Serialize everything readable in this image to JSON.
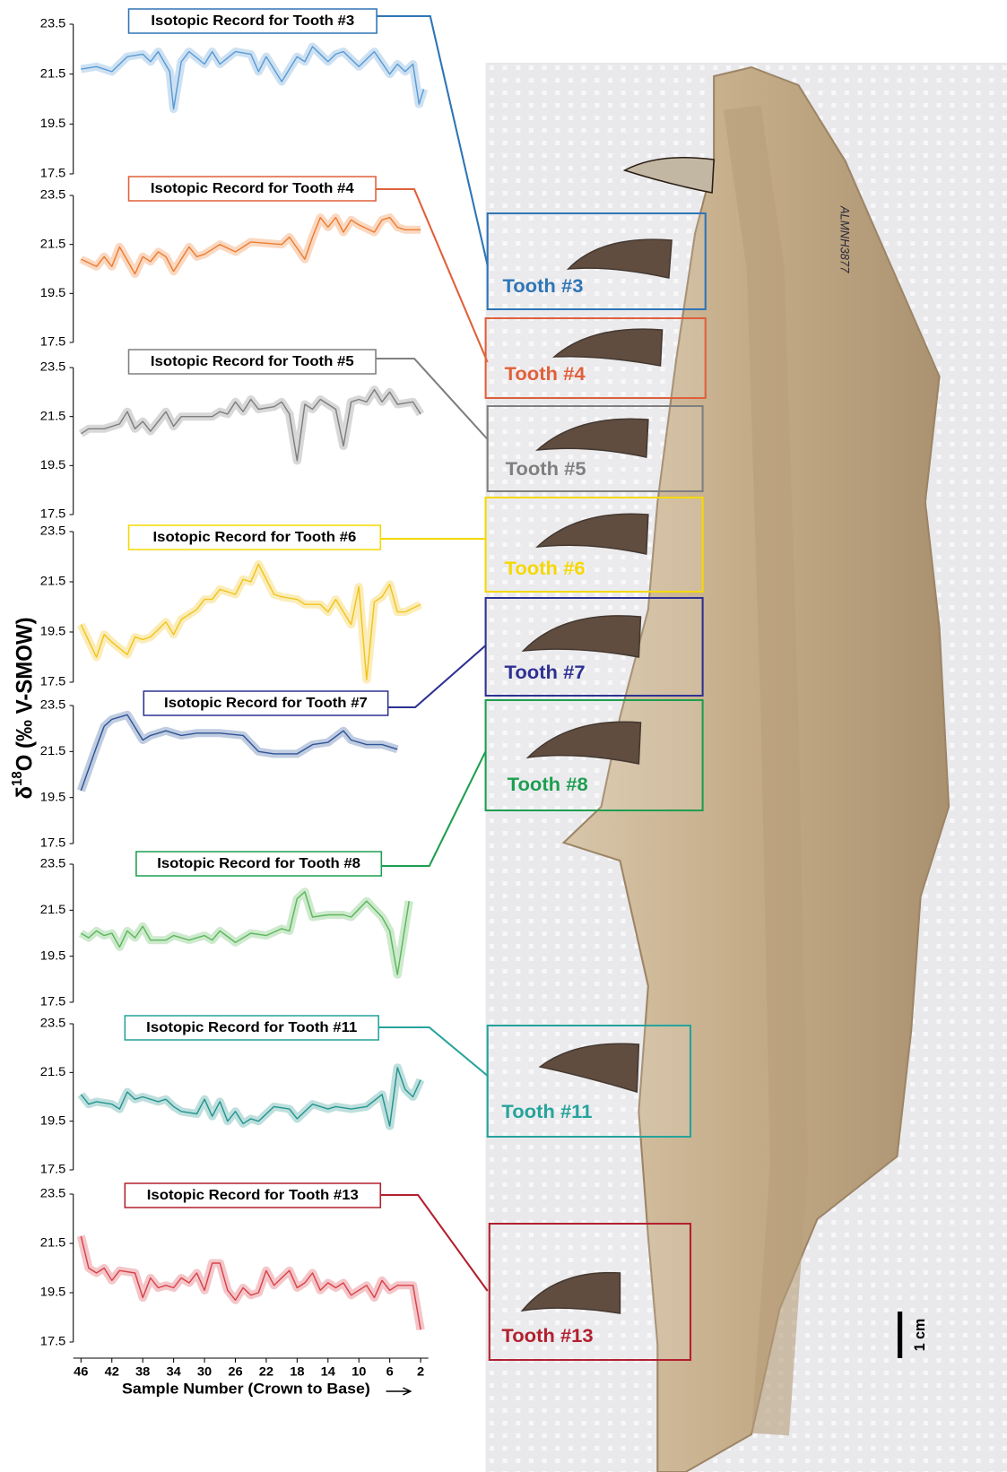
{
  "ylabel": {
    "symbol": "δ",
    "superscript": "18",
    "rest": "O (‰ V-SMOW)"
  },
  "photo": {
    "specimen_label": "ALMNH3877",
    "scale_label": "1 cm",
    "tooth_labels": [
      "Tooth #3",
      "Tooth #4",
      "Tooth #5",
      "Tooth #6",
      "Tooth #7",
      "Tooth #8",
      "Tooth #11",
      "Tooth #13"
    ]
  },
  "chart_data": [
    {
      "type": "line",
      "title": "Isotopic Record for Tooth #3",
      "color": "#5b9bd5",
      "box_color": "#2e75b6",
      "x": [
        46,
        44,
        42,
        40,
        38,
        37,
        36,
        34.5,
        34,
        33,
        32,
        30,
        29,
        28,
        26,
        24,
        23,
        22,
        20,
        18,
        17,
        16,
        14,
        13,
        12,
        10,
        8,
        6,
        5,
        4,
        3,
        2.2,
        1.6
      ],
      "values": [
        21.7,
        21.8,
        21.6,
        22.2,
        22.3,
        22.0,
        22.4,
        21.6,
        20.1,
        22.0,
        22.4,
        21.9,
        22.4,
        21.9,
        22.4,
        22.3,
        21.6,
        22.2,
        21.2,
        22.2,
        22.0,
        22.6,
        22.0,
        22.3,
        22.4,
        21.8,
        22.4,
        21.5,
        21.9,
        21.6,
        21.9,
        20.3,
        20.9
      ],
      "xlim": [
        47,
        1
      ],
      "ylim": [
        17.5,
        23.5
      ],
      "yticks": [
        17.5,
        19.5,
        21.5,
        23.5
      ]
    },
    {
      "type": "line",
      "title": "Isotopic Record for Tooth #4",
      "color": "#ed7d31",
      "box_color": "#e0603a",
      "x": [
        46,
        44,
        43,
        42,
        41,
        39,
        38,
        37,
        36,
        35,
        34,
        32,
        31,
        30,
        28,
        26,
        24,
        20,
        19,
        17,
        16,
        15,
        14,
        13,
        12,
        11,
        10,
        8,
        7,
        6,
        5,
        4,
        2
      ],
      "values": [
        20.9,
        20.6,
        21.0,
        20.6,
        21.4,
        20.3,
        21.0,
        20.8,
        21.2,
        21.0,
        20.4,
        21.4,
        21.0,
        21.1,
        21.5,
        21.2,
        21.6,
        21.5,
        21.8,
        20.9,
        21.8,
        22.6,
        22.2,
        22.6,
        22.0,
        22.5,
        22.3,
        22.0,
        22.5,
        22.6,
        22.2,
        22.1,
        22.1
      ],
      "xlim": [
        47,
        1
      ],
      "ylim": [
        17.5,
        23.5
      ],
      "yticks": [
        17.5,
        19.5,
        21.5,
        23.5
      ]
    },
    {
      "type": "line",
      "title": "Isotopic Record for Tooth #5",
      "color": "#7f7f7f",
      "box_color": "#7f7f7f",
      "x": [
        46,
        45,
        43,
        41,
        40,
        39,
        38,
        37,
        35,
        34,
        33,
        31,
        29,
        28,
        27,
        26,
        25,
        24,
        23,
        21,
        20,
        19,
        18,
        17,
        16,
        15,
        13,
        12,
        11,
        10,
        9,
        8,
        7,
        6,
        5,
        3,
        2
      ],
      "values": [
        20.8,
        21.0,
        21.0,
        21.2,
        21.7,
        21.0,
        21.3,
        20.9,
        21.7,
        21.1,
        21.5,
        21.5,
        21.5,
        21.7,
        21.6,
        22.1,
        21.7,
        22.2,
        21.8,
        21.9,
        22.1,
        21.6,
        19.7,
        22.0,
        21.8,
        22.2,
        21.8,
        20.3,
        22.1,
        22.2,
        22.1,
        22.6,
        22.1,
        22.5,
        22.0,
        22.1,
        21.6
      ],
      "xlim": [
        47,
        1
      ],
      "ylim": [
        17.5,
        23.5
      ],
      "yticks": [
        17.5,
        19.5,
        21.5,
        23.5
      ]
    },
    {
      "type": "line",
      "title": "Isotopic Record for Tooth #6",
      "color": "#f2c41c",
      "box_color": "#f5d800",
      "x": [
        46,
        44,
        43,
        42,
        40,
        39,
        38,
        37,
        35,
        34,
        33,
        31,
        30,
        29,
        28,
        27,
        26,
        25,
        24,
        23,
        21,
        20,
        18,
        17,
        15,
        14,
        13,
        11,
        10,
        9,
        8,
        7,
        6,
        5,
        4,
        2
      ],
      "values": [
        19.8,
        18.5,
        19.4,
        19.1,
        18.6,
        19.3,
        19.2,
        19.3,
        19.9,
        19.4,
        20.0,
        20.4,
        20.8,
        20.8,
        21.2,
        21.1,
        21.0,
        21.6,
        21.5,
        22.2,
        21.0,
        20.9,
        20.8,
        20.6,
        20.6,
        20.3,
        20.8,
        19.8,
        21.3,
        17.6,
        20.7,
        20.9,
        21.4,
        20.3,
        20.3,
        20.6
      ],
      "xlim": [
        47,
        1
      ],
      "ylim": [
        17.5,
        23.5
      ],
      "yticks": [
        17.5,
        19.5,
        21.5,
        23.5
      ]
    },
    {
      "type": "line",
      "title": "Isotopic Record for Tooth #7",
      "color": "#2f5597",
      "box_color": "#2e3192",
      "x": [
        46,
        44,
        43,
        42,
        40,
        38,
        37,
        35,
        33,
        31,
        28,
        25,
        23,
        21,
        18,
        16,
        14,
        12,
        11,
        9,
        7,
        5
      ],
      "values": [
        19.8,
        21.7,
        22.6,
        22.9,
        23.1,
        22.0,
        22.2,
        22.4,
        22.2,
        22.3,
        22.3,
        22.2,
        21.5,
        21.4,
        21.4,
        21.8,
        21.9,
        22.4,
        22.0,
        21.8,
        21.8,
        21.6
      ],
      "xlim": [
        47,
        1
      ],
      "ylim": [
        17.5,
        23.5
      ],
      "yticks": [
        17.5,
        19.5,
        21.5,
        23.5
      ]
    },
    {
      "type": "line",
      "title": "Isotopic Record for Tooth #8",
      "color": "#5cb85c",
      "box_color": "#1e9e50",
      "x": [
        46,
        45,
        44,
        43,
        42,
        41,
        40,
        39,
        38,
        37,
        35,
        34,
        32,
        30,
        29,
        28,
        26,
        24,
        22,
        20,
        19,
        18,
        17,
        16,
        14,
        12,
        11,
        9,
        7,
        6,
        5,
        3.5
      ],
      "values": [
        20.5,
        20.3,
        20.6,
        20.4,
        20.5,
        19.9,
        20.6,
        20.3,
        20.8,
        20.2,
        20.2,
        20.4,
        20.2,
        20.4,
        20.2,
        20.6,
        20.1,
        20.5,
        20.4,
        20.7,
        20.6,
        22.0,
        22.3,
        21.2,
        21.3,
        21.3,
        21.2,
        21.9,
        21.2,
        20.6,
        18.7,
        21.9
      ],
      "xlim": [
        47,
        1
      ],
      "ylim": [
        17.5,
        23.5
      ],
      "yticks": [
        17.5,
        19.5,
        21.5,
        23.5
      ]
    },
    {
      "type": "line",
      "title": "Isotopic Record for Tooth #11",
      "color": "#26958f",
      "box_color": "#26a39b",
      "x": [
        46,
        45,
        44,
        42,
        41,
        40,
        39,
        38,
        36,
        35,
        34,
        33,
        31,
        30,
        29,
        28,
        27,
        26,
        25,
        24,
        23,
        21,
        19,
        18,
        16,
        14,
        13,
        11,
        9,
        7,
        6,
        5,
        4,
        3,
        2
      ],
      "values": [
        20.6,
        20.2,
        20.3,
        20.2,
        20.0,
        20.7,
        20.4,
        20.5,
        20.3,
        20.4,
        20.1,
        19.9,
        19.8,
        20.4,
        19.7,
        20.3,
        19.5,
        19.9,
        19.4,
        19.6,
        19.5,
        20.1,
        20.0,
        19.6,
        20.2,
        20.0,
        20.1,
        20.0,
        20.1,
        20.6,
        19.3,
        21.7,
        20.8,
        20.5,
        21.2
      ],
      "xlim": [
        47,
        1
      ],
      "ylim": [
        17.5,
        23.5
      ],
      "yticks": [
        17.5,
        19.5,
        21.5,
        23.5
      ]
    },
    {
      "type": "line",
      "title": "Isotopic Record for Tooth #13",
      "color": "#d9434b",
      "box_color": "#b3202e",
      "x": [
        46,
        45,
        44,
        43,
        42,
        41,
        39,
        38,
        37,
        36,
        35,
        34,
        33,
        32,
        31,
        30,
        29,
        28,
        27,
        26,
        25,
        24,
        23,
        22,
        21,
        20,
        19,
        18,
        17,
        16,
        15,
        14,
        13,
        12,
        11,
        10,
        9,
        8,
        7,
        6,
        5,
        4,
        3,
        2
      ],
      "values": [
        21.8,
        20.5,
        20.3,
        20.5,
        20.0,
        20.4,
        20.3,
        19.3,
        20.1,
        19.7,
        19.8,
        19.7,
        20.1,
        19.9,
        20.3,
        19.6,
        20.7,
        20.7,
        19.6,
        19.2,
        19.7,
        19.4,
        19.5,
        20.4,
        19.8,
        20.1,
        20.4,
        19.7,
        19.9,
        20.3,
        19.6,
        19.9,
        19.7,
        19.9,
        19.4,
        19.6,
        19.8,
        19.3,
        20.0,
        19.6,
        19.8,
        19.8,
        19.8,
        18.0
      ],
      "xlim": [
        47,
        1
      ],
      "ylim": [
        17.5,
        23.5
      ],
      "yticks": [
        17.5,
        19.5,
        21.5,
        23.5
      ],
      "xticks": [
        46,
        42,
        38,
        34,
        30,
        26,
        22,
        18,
        14,
        10,
        6,
        2
      ],
      "xlabel": "Sample Number (Crown to Base)"
    }
  ]
}
